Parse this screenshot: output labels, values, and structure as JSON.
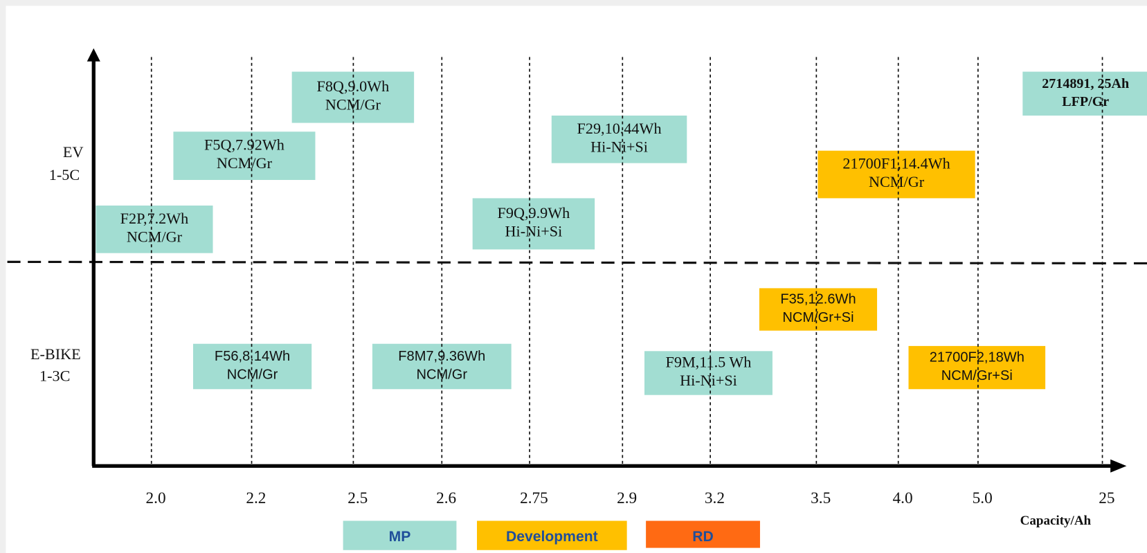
{
  "y_axis": {
    "groups": [
      {
        "lines": [
          "EV",
          "1-5C"
        ]
      },
      {
        "lines": [
          "E-BIKE",
          "1-3C"
        ]
      }
    ]
  },
  "x_axis": {
    "ticks": [
      "2.0",
      "2.2",
      "2.5",
      "2.6",
      "2.75",
      "2.9",
      "3.2",
      "3.5",
      "4.0",
      "5.0",
      "25"
    ],
    "label": "Capacity/Ah"
  },
  "products": [
    {
      "lines": [
        "F8Q,9.0Wh",
        "NCM/Gr"
      ]
    },
    {
      "lines": [
        "F5Q,7.92Wh",
        "NCM/Gr"
      ]
    },
    {
      "lines": [
        "F2P,7.2Wh",
        "NCM/Gr"
      ]
    },
    {
      "lines": [
        "F29,10.44Wh",
        "Hi-Ni+Si"
      ]
    },
    {
      "lines": [
        "F9Q,9.9Wh",
        "Hi-Ni+Si"
      ]
    },
    {
      "lines": [
        "2714891, 25Ah",
        "LFP/Gr"
      ]
    },
    {
      "lines": [
        "21700F1,14.4Wh",
        "NCM/Gr"
      ]
    },
    {
      "lines": [
        "F35,12.6Wh",
        "NCM/Gr+Si"
      ]
    },
    {
      "lines": [
        "F56,8.14Wh",
        "NCM/Gr"
      ]
    },
    {
      "lines": [
        "F8M7,9.36Wh",
        "NCM/Gr"
      ]
    },
    {
      "lines": [
        "F9M,11.5 Wh",
        "Hi-Ni+Si"
      ]
    },
    {
      "lines": [
        "21700F2,18Wh",
        "NCM/Gr+Si"
      ]
    }
  ],
  "legend": [
    "MP",
    "Development",
    "RD"
  ]
}
